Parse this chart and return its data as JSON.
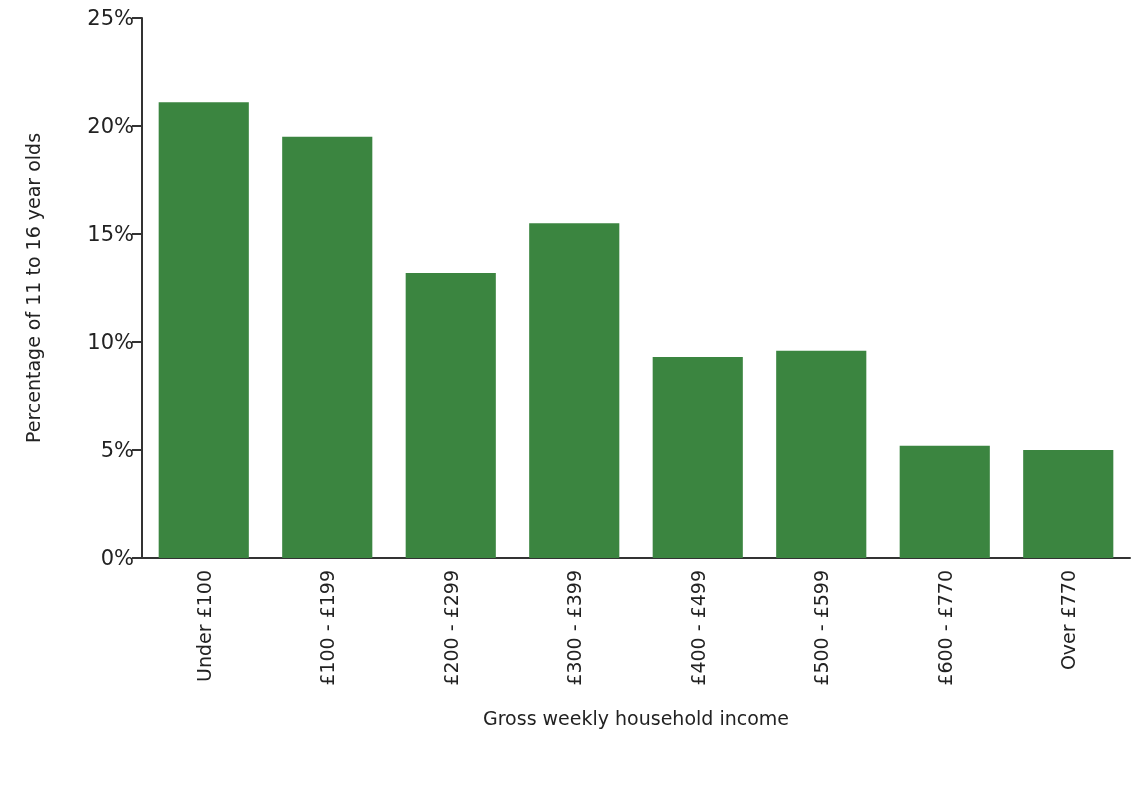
{
  "chart_data": {
    "type": "bar",
    "xlabel": "Gross weekly household income",
    "ylabel": "Percentage of 11 to 16 year olds",
    "categories": [
      "Under £100",
      "£100 - £199",
      "£200 - £299",
      "£300 - £399",
      "£400 - £499",
      "£500 - £599",
      "£600 - £770",
      "Over £770"
    ],
    "values": [
      21.1,
      19.5,
      13.2,
      15.5,
      9.3,
      9.6,
      5.2,
      5.0
    ],
    "color": "#3b8540",
    "ylim": [
      0,
      25
    ],
    "yticks": [
      {
        "value": 0,
        "label": "0%"
      },
      {
        "value": 5,
        "label": "5%"
      },
      {
        "value": 10,
        "label": "10%"
      },
      {
        "value": 15,
        "label": "15%"
      },
      {
        "value": 20,
        "label": "20%"
      },
      {
        "value": 25,
        "label": "25%"
      }
    ],
    "grid": false
  }
}
